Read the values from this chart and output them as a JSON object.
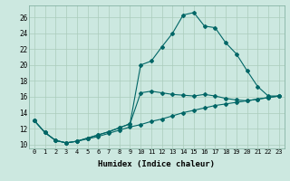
{
  "xlabel": "Humidex (Indice chaleur)",
  "bg_color": "#cce8e0",
  "grid_color": "#aaccbb",
  "line_color": "#006666",
  "xlim": [
    -0.5,
    23.5
  ],
  "ylim": [
    9.5,
    27.5
  ],
  "yticks": [
    10,
    12,
    14,
    16,
    18,
    20,
    22,
    24,
    26
  ],
  "xticks": [
    0,
    1,
    2,
    3,
    4,
    5,
    6,
    7,
    8,
    9,
    10,
    11,
    12,
    13,
    14,
    15,
    16,
    17,
    18,
    19,
    20,
    21,
    22,
    23
  ],
  "series": {
    "line1": {
      "x": [
        0,
        1,
        2,
        3,
        4,
        5,
        6,
        7,
        8,
        9,
        10,
        11,
        12,
        13,
        14,
        15,
        16,
        17,
        18,
        19,
        20,
        21,
        22,
        23
      ],
      "y": [
        13.0,
        11.5,
        10.5,
        10.2,
        10.4,
        10.7,
        11.0,
        11.4,
        11.8,
        12.2,
        12.5,
        12.9,
        13.2,
        13.6,
        14.0,
        14.3,
        14.6,
        14.9,
        15.1,
        15.3,
        15.5,
        15.7,
        15.9,
        16.1
      ]
    },
    "line2": {
      "x": [
        0,
        1,
        2,
        3,
        4,
        5,
        6,
        7,
        8,
        9,
        10,
        11,
        12,
        13,
        14,
        15,
        16,
        17,
        18,
        19,
        20,
        21,
        22,
        23
      ],
      "y": [
        13.0,
        11.5,
        10.5,
        10.2,
        10.4,
        10.8,
        11.2,
        11.6,
        12.1,
        12.6,
        16.5,
        16.7,
        16.5,
        16.3,
        16.2,
        16.1,
        16.3,
        16.1,
        15.8,
        15.6,
        15.5,
        15.7,
        15.9,
        16.1
      ]
    },
    "line3": {
      "x": [
        0,
        1,
        2,
        3,
        4,
        5,
        6,
        7,
        8,
        9,
        10,
        11,
        12,
        13,
        14,
        15,
        16,
        17,
        18,
        19,
        20,
        21,
        22,
        23
      ],
      "y": [
        13.0,
        11.5,
        10.5,
        10.2,
        10.4,
        10.8,
        11.2,
        11.6,
        12.1,
        12.6,
        20.0,
        20.5,
        22.3,
        24.0,
        26.3,
        26.6,
        24.9,
        24.7,
        22.8,
        21.4,
        19.3,
        17.3,
        16.1,
        16.1
      ]
    }
  }
}
